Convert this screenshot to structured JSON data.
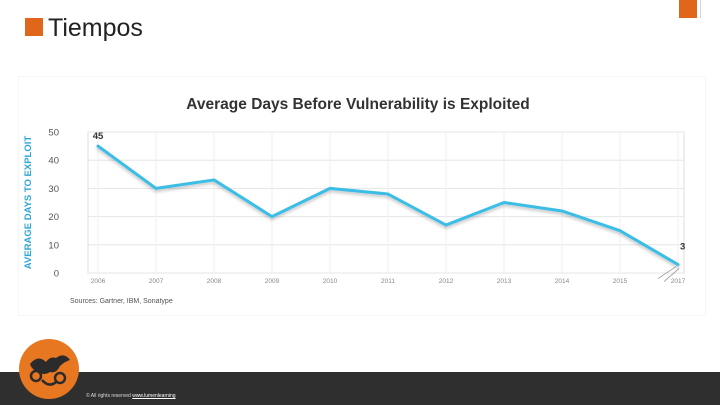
{
  "slide": {
    "title": "Tiempos",
    "footer_prefix": "© All rights reserved",
    "footer_link": "www.lumenlearning"
  },
  "colors": {
    "accent": "#e0661c",
    "line": "#3bbde6",
    "ylabel": "#2aa6d8",
    "footer": "#2f2f2f"
  },
  "chart_data": {
    "type": "line",
    "title": "Average Days Before Vulnerability is Exploited",
    "xlabel": "",
    "ylabel": "AVERAGE DAYS TO EXPLOIT",
    "ylim": [
      0,
      50
    ],
    "yticks": [
      0,
      10,
      20,
      30,
      40,
      50
    ],
    "categories": [
      "2006",
      "2007",
      "2008",
      "2009",
      "2010",
      "2011",
      "2012",
      "2013",
      "2014",
      "2015",
      "2017"
    ],
    "values": [
      45,
      30,
      33,
      20,
      30,
      28,
      17,
      25,
      22,
      15,
      3
    ],
    "data_labels": [
      {
        "index": 0,
        "text": "45"
      },
      {
        "index": 10,
        "text": "3"
      }
    ],
    "source": "Sources: Gartner, IBM, Sonatype",
    "grid": true
  }
}
